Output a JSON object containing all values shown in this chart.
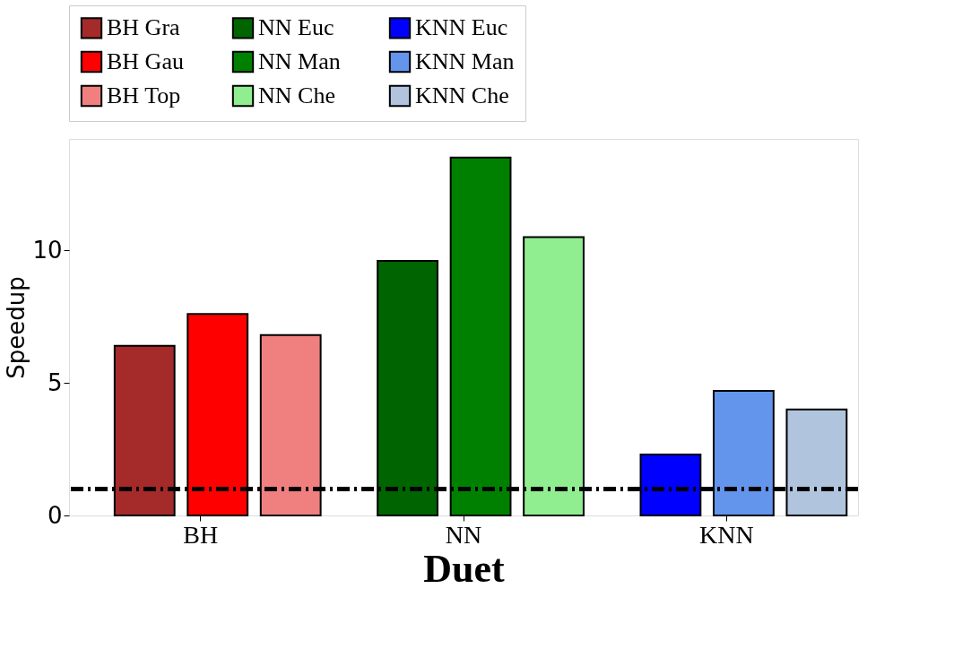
{
  "chart_data": {
    "type": "bar",
    "xlabel": "Duet",
    "ylabel": "Speedup",
    "categories": [
      "BH",
      "NN",
      "KNN"
    ],
    "series": [
      {
        "name": "BH Gra",
        "color": "#a52a2a",
        "values": [
          6.4,
          null,
          null
        ]
      },
      {
        "name": "BH Gau",
        "color": "#ff0000",
        "values": [
          7.6,
          null,
          null
        ]
      },
      {
        "name": "BH Top",
        "color": "#f08080",
        "values": [
          6.8,
          null,
          null
        ]
      },
      {
        "name": "NN Euc",
        "color": "#006400",
        "values": [
          null,
          9.6,
          null
        ]
      },
      {
        "name": "NN Man",
        "color": "#008000",
        "values": [
          null,
          13.5,
          null
        ]
      },
      {
        "name": "NN Che",
        "color": "#90ee90",
        "values": [
          null,
          10.5,
          null
        ]
      },
      {
        "name": "KNN Euc",
        "color": "#0000ff",
        "values": [
          null,
          null,
          2.3
        ]
      },
      {
        "name": "KNN Man",
        "color": "#6495ed",
        "values": [
          null,
          null,
          4.7
        ]
      },
      {
        "name": "KNN Che",
        "color": "#b0c4de",
        "values": [
          null,
          null,
          4.0
        ]
      }
    ],
    "ylim": [
      0,
      14.2
    ],
    "yticks": [
      0,
      5,
      10
    ],
    "ref_lines": [
      {
        "axis": "y",
        "value": 1,
        "color": "#000000",
        "line_style": "dashed"
      }
    ],
    "grid": false,
    "legend": "top"
  }
}
